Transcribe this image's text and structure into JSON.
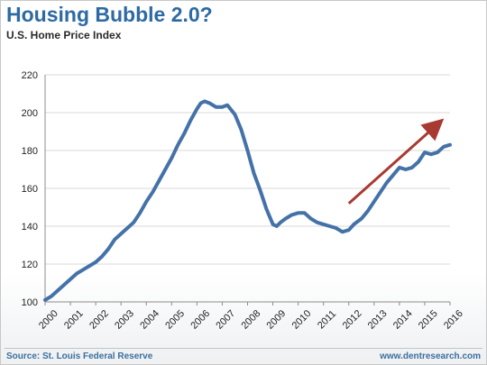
{
  "header": {
    "title": "Housing Bubble 2.0?",
    "subtitle": "U.S. Home Price Index"
  },
  "footer": {
    "source": "Source: St. Louis Federal Reserve",
    "site": "www.dentresearch.com"
  },
  "colors": {
    "title": "#2d6aa3",
    "series_line": "#4472a8",
    "arrow": "#a83a32",
    "grid": "#d9d9d9"
  },
  "chart_data": {
    "type": "line",
    "title": "Housing Bubble 2.0?",
    "subtitle": "U.S. Home Price Index",
    "xlabel": "",
    "ylabel": "",
    "xlim": [
      2000,
      2016
    ],
    "ylim": [
      100,
      220
    ],
    "y_ticks": [
      100,
      120,
      140,
      160,
      180,
      200,
      220
    ],
    "x_ticks": [
      "2000",
      "2001",
      "2002",
      "2003",
      "2004",
      "2005",
      "2006",
      "2007",
      "2008",
      "2009",
      "2010",
      "2011",
      "2012",
      "2013",
      "2014",
      "2015",
      "2016"
    ],
    "grid": "horizontal",
    "legend": "none",
    "series": [
      {
        "x": [
          2000.0,
          2000.25,
          2000.5,
          2000.75,
          2001.0,
          2001.25,
          2001.5,
          2001.75,
          2002.0,
          2002.25,
          2002.5,
          2002.75,
          2003.0,
          2003.25,
          2003.5,
          2003.75,
          2004.0,
          2004.25,
          2004.5,
          2004.75,
          2005.0,
          2005.25,
          2005.5,
          2005.75,
          2006.0,
          2006.15,
          2006.3,
          2006.5,
          2006.75,
          2007.0,
          2007.2,
          2007.5,
          2007.75,
          2008.0,
          2008.25,
          2008.5,
          2008.75,
          2009.0,
          2009.15,
          2009.3,
          2009.5,
          2009.75,
          2010.0,
          2010.25,
          2010.5,
          2010.75,
          2011.0,
          2011.25,
          2011.5,
          2011.75,
          2012.0,
          2012.2,
          2012.5,
          2012.75,
          2013.0,
          2013.25,
          2013.5,
          2013.75,
          2014.0,
          2014.25,
          2014.5,
          2014.75,
          2015.0,
          2015.25,
          2015.5,
          2015.75,
          2016.0
        ],
        "y": [
          101,
          103,
          106,
          109,
          112,
          115,
          117,
          119,
          121,
          124,
          128,
          133,
          136,
          139,
          142,
          147,
          153,
          158,
          164,
          170,
          176,
          183,
          189,
          196,
          202,
          205,
          206,
          205,
          203,
          203,
          204,
          199,
          191,
          180,
          168,
          159,
          149,
          141,
          140,
          142,
          144,
          146,
          147,
          147,
          144,
          142,
          141,
          140,
          139,
          137,
          138,
          141,
          144,
          148,
          153,
          158,
          163,
          167,
          171,
          170,
          171,
          174,
          179,
          178,
          179,
          182,
          183
        ]
      }
    ],
    "annotations": [
      {
        "type": "arrow",
        "from": [
          2012.0,
          152
        ],
        "to": [
          2015.6,
          195
        ]
      }
    ]
  }
}
